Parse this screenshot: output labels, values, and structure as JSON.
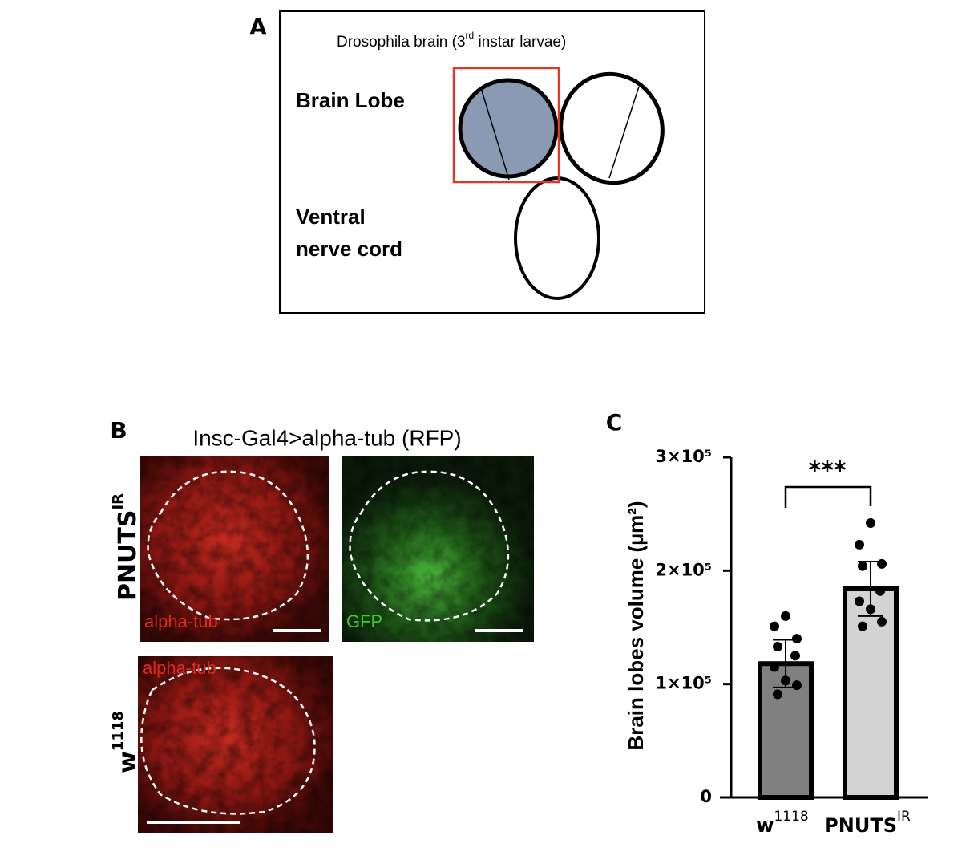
{
  "panel_a": {
    "label": "A",
    "title": [
      "Drosophila brain (3",
      "rd",
      " instar larvae)"
    ],
    "brain_lobe": "Brain Lobe",
    "vnc": [
      "Ventral",
      "nerve  cord"
    ]
  },
  "panel_b": {
    "label": "B",
    "title": "Insc-Gal4>alpha-tub (RFP)",
    "rows": [
      {
        "name": "PNUTS",
        "sup": "IR"
      },
      {
        "name": "w",
        "sup": "1118"
      }
    ],
    "images": [
      "alpha-tub",
      "GFP",
      "alpha-tub"
    ]
  },
  "panel_c": {
    "label": "C"
  },
  "chart_data": {
    "type": "bar",
    "categories": [
      "w",
      "PNUTS"
    ],
    "category_superscripts": [
      "1118",
      "IR"
    ],
    "ylabel": "Brain lobes volume (µm²)",
    "values": [
      118000,
      184000
    ],
    "errors": [
      21000,
      24000
    ],
    "colors": [
      "#808080",
      "#d3d3d3"
    ],
    "points": [
      [
        160000,
        151000,
        140000,
        133000,
        125000,
        115000,
        103000,
        99000,
        91000
      ],
      [
        242000,
        223000,
        206000,
        204000,
        182000,
        173000,
        166000,
        155000,
        151000
      ]
    ],
    "ylim": [
      0,
      300000
    ],
    "yticks": [
      0,
      {
        "value": 100000,
        "label": "1×10⁵"
      },
      {
        "value": 200000,
        "label": "2×10⁵"
      },
      {
        "value": 300000,
        "label": "3×10⁵"
      }
    ],
    "significance": "***"
  }
}
